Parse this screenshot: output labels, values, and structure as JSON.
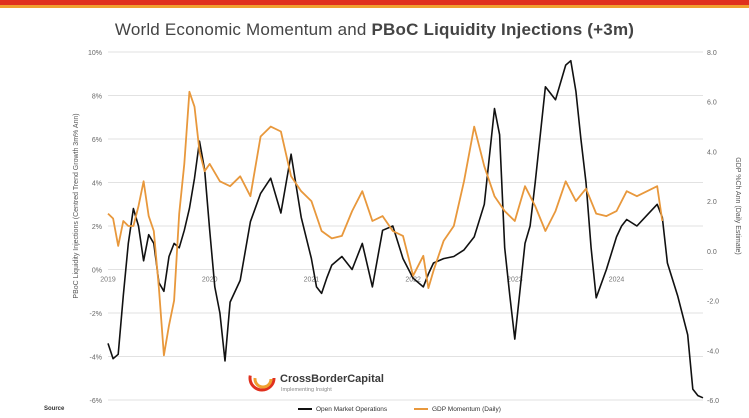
{
  "header": {
    "bar_colors": [
      "#e0301e",
      "#f0a030"
    ]
  },
  "chart_data": {
    "type": "line",
    "title_prefix": "World Economic Momentum and ",
    "title_bold": "PBoC Liquidity Injections (+3m)",
    "left_axis": {
      "label": "PBoC Liquidity Injections (Centred Trend Growth 3m% Ann)",
      "ylim": [
        -6,
        10
      ],
      "ticks": [
        "10%",
        "8%",
        "6%",
        "4%",
        "2%",
        "0%",
        "-2%",
        "-4%",
        "-6%"
      ],
      "tick_values": [
        10,
        8,
        6,
        4,
        2,
        0,
        -2,
        -4,
        -6
      ]
    },
    "right_axis": {
      "label": "GDP %Ch Ann (Daily Estimate)",
      "ylim": [
        -6,
        8
      ],
      "ticks": [
        "8.0",
        "6.0",
        "4.0",
        "2.0",
        "0.0",
        "-2.0",
        "-4.0",
        "-6.0"
      ],
      "tick_values": [
        8,
        6,
        4,
        2,
        0,
        -2,
        -4,
        -6
      ]
    },
    "x_axis": {
      "xlim": [
        2019.0,
        2024.85
      ],
      "tick_labels": [
        "2019",
        "2020",
        "2021",
        "2022",
        "2023",
        "2024"
      ],
      "tick_values": [
        2019,
        2020,
        2021,
        2022,
        2023,
        2024
      ]
    },
    "series": [
      {
        "name": "Open Market Operations",
        "axis": "left",
        "color": "#111111",
        "x": [
          2019.0,
          2019.05,
          2019.1,
          2019.15,
          2019.2,
          2019.25,
          2019.3,
          2019.35,
          2019.4,
          2019.45,
          2019.5,
          2019.55,
          2019.6,
          2019.65,
          2019.7,
          2019.75,
          2019.8,
          2019.85,
          2019.9,
          2019.95,
          2020.0,
          2020.05,
          2020.1,
          2020.15,
          2020.2,
          2020.3,
          2020.4,
          2020.5,
          2020.6,
          2020.7,
          2020.8,
          2020.9,
          2021.0,
          2021.05,
          2021.1,
          2021.15,
          2021.2,
          2021.3,
          2021.4,
          2021.5,
          2021.6,
          2021.7,
          2021.8,
          2021.9,
          2022.0,
          2022.1,
          2022.15,
          2022.2,
          2022.3,
          2022.4,
          2022.5,
          2022.6,
          2022.7,
          2022.8,
          2022.85,
          2022.9,
          2022.95,
          2023.0,
          2023.05,
          2023.1,
          2023.15,
          2023.2,
          2023.3,
          2023.4,
          2023.5,
          2023.55,
          2023.6,
          2023.65,
          2023.7,
          2023.75,
          2023.8,
          2023.9,
          2024.0,
          2024.05,
          2024.1,
          2024.2,
          2024.3,
          2024.4,
          2024.45,
          2024.5,
          2024.6,
          2024.7,
          2024.75,
          2024.8,
          2024.85
        ],
        "values": [
          -3.4,
          -4.1,
          -3.9,
          -1.2,
          1.2,
          2.8,
          2.0,
          0.4,
          1.6,
          1.2,
          -0.6,
          -1.0,
          0.6,
          1.2,
          1.0,
          1.8,
          2.8,
          4.2,
          5.9,
          4.6,
          1.8,
          -0.8,
          -2.0,
          -4.2,
          -1.5,
          -0.5,
          2.2,
          3.5,
          4.2,
          2.6,
          5.3,
          2.4,
          0.5,
          -0.8,
          -1.1,
          -0.4,
          0.2,
          0.6,
          0.0,
          1.2,
          -0.8,
          1.8,
          2.0,
          0.5,
          -0.4,
          -0.8,
          -0.2,
          0.3,
          0.5,
          0.6,
          0.9,
          1.5,
          3.0,
          7.4,
          6.2,
          1.0,
          -1.2,
          -3.2,
          -1.0,
          1.2,
          2.0,
          4.0,
          8.4,
          7.8,
          9.4,
          9.6,
          8.2,
          6.0,
          4.0,
          1.0,
          -1.3,
          0.0,
          1.5,
          2.0,
          2.3,
          2.0,
          2.5,
          3.0,
          2.4,
          0.3,
          -1.2,
          -3.0,
          -5.5,
          -5.8,
          -5.9
        ]
      },
      {
        "name": "GDP Momentum (Daily)",
        "axis": "right",
        "color": "#e8983c",
        "x": [
          2019.0,
          2019.05,
          2019.1,
          2019.15,
          2019.2,
          2019.25,
          2019.3,
          2019.35,
          2019.4,
          2019.45,
          2019.5,
          2019.55,
          2019.6,
          2019.65,
          2019.7,
          2019.75,
          2019.8,
          2019.85,
          2019.9,
          2019.95,
          2020.0,
          2020.1,
          2020.2,
          2020.3,
          2020.4,
          2020.5,
          2020.6,
          2020.7,
          2020.8,
          2020.9,
          2021.0,
          2021.1,
          2021.2,
          2021.3,
          2021.4,
          2021.5,
          2021.6,
          2021.7,
          2021.8,
          2021.9,
          2022.0,
          2022.1,
          2022.15,
          2022.2,
          2022.3,
          2022.4,
          2022.5,
          2022.6,
          2022.7,
          2022.8,
          2022.9,
          2023.0,
          2023.1,
          2023.2,
          2023.3,
          2023.4,
          2023.5,
          2023.6,
          2023.7,
          2023.8,
          2023.9,
          2024.0,
          2024.1,
          2024.2,
          2024.3,
          2024.4,
          2024.45
        ],
        "values": [
          1.5,
          1.3,
          0.2,
          1.2,
          1.0,
          1.0,
          1.8,
          2.8,
          1.4,
          0.8,
          -1.5,
          -4.2,
          -3.0,
          -2.0,
          1.5,
          3.5,
          6.4,
          5.8,
          4.0,
          3.2,
          3.5,
          2.8,
          2.6,
          3.0,
          2.2,
          4.6,
          5.0,
          4.8,
          3.0,
          2.4,
          2.0,
          0.8,
          0.5,
          0.6,
          1.6,
          2.4,
          1.2,
          1.4,
          0.8,
          0.6,
          -1.0,
          -0.2,
          -1.5,
          -0.8,
          0.4,
          1.0,
          2.8,
          5.0,
          3.4,
          2.2,
          1.6,
          1.2,
          2.6,
          1.8,
          0.8,
          1.6,
          2.8,
          2.0,
          2.5,
          1.5,
          1.4,
          1.6,
          2.4,
          2.2,
          2.4,
          2.6,
          1.2
        ]
      }
    ],
    "legend": {
      "placement": "bottom-center"
    },
    "watermark": {
      "brand": "CrossBorderCapital",
      "tagline": "Implementing Insight"
    },
    "source_label": "Source"
  }
}
